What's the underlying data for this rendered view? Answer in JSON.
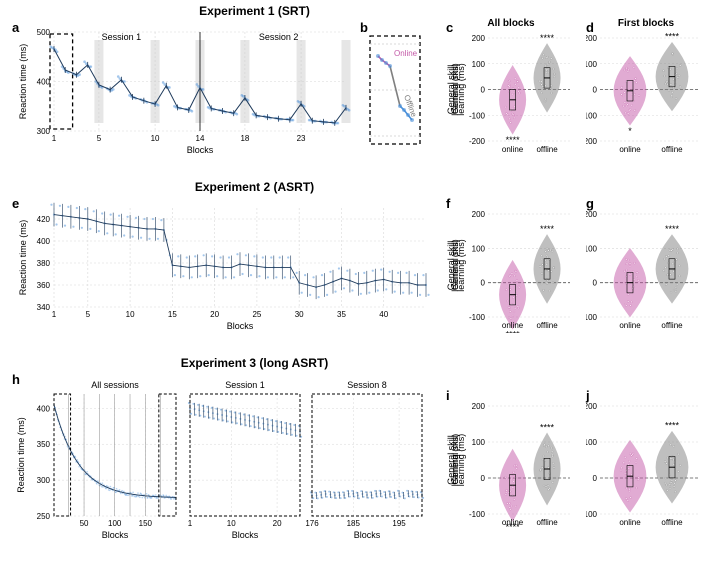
{
  "colors": {
    "line": "#4a90d9",
    "lineDark": "#1f3b5c",
    "grid": "#d8d8d8",
    "bg": "#ffffff",
    "shade": "#c8c8c8",
    "online": "#c45aa8",
    "offline": "#808080",
    "dash": "#333333"
  },
  "exp1": {
    "title": "Experiment 1 (SRT)",
    "panelA": {
      "label": "a",
      "ylabel": "Reaction time (ms)",
      "xlabel": "Blocks",
      "ylim": [
        300,
        500
      ],
      "yticks": [
        300,
        400,
        500
      ],
      "xlim": [
        1,
        27
      ],
      "xticks": [
        1,
        5,
        10,
        14,
        18,
        23
      ],
      "session1": "Session 1",
      "session2": "Session 2",
      "vline_at": 14,
      "shade_blocks": [
        5,
        10,
        14,
        18,
        23,
        27
      ],
      "dash_box": [
        1,
        2.3
      ],
      "data": [
        470,
        468,
        466,
        464,
        460,
        430,
        426,
        422,
        420,
        418,
        416,
        414,
        412,
        412,
        414,
        440,
        436,
        432,
        430,
        430,
        400,
        396,
        392,
        390,
        388,
        386,
        384,
        382,
        382,
        384,
        410,
        406,
        402,
        400,
        400,
        372,
        370,
        368,
        368,
        366,
        364,
        362,
        362,
        360,
        358,
        356,
        356,
        354,
        354,
        352,
        398,
        394,
        390,
        388,
        388,
        350,
        348,
        348,
        346,
        346,
        344,
        344,
        342,
        342,
        340,
        394,
        390,
        386,
        384,
        384,
        348,
        346,
        346,
        344,
        344,
        342,
        342,
        340,
        340,
        338,
        338,
        336,
        336,
        336,
        334,
        372,
        370,
        366,
        364,
        362,
        334,
        332,
        332,
        330,
        330,
        330,
        328,
        328,
        328,
        326,
        326,
        326,
        324,
        324,
        324,
        324,
        324,
        322,
        322,
        322,
        360,
        358,
        354,
        352,
        350,
        322,
        322,
        320,
        320,
        320,
        320,
        318,
        318,
        318,
        318,
        318,
        316,
        316,
        316,
        316,
        352,
        350,
        346,
        344,
        342
      ],
      "pts_per_block": 5
    },
    "panelB": {
      "label": "b",
      "online": "Online",
      "offline": "Offline"
    },
    "panelC": {
      "label": "c",
      "title": "All blocks",
      "ylabel": "General skill\nlearning (ms)",
      "ylim": [
        -200,
        200
      ],
      "yticks": [
        -200,
        -100,
        0,
        100,
        200
      ],
      "xcats": [
        "online",
        "offline"
      ],
      "online_center": -40,
      "offline_center": 45,
      "stars_online": "****",
      "stars_offline": "****"
    },
    "panelD": {
      "label": "d",
      "title": "First blocks",
      "online_center": -5,
      "offline_center": 50,
      "stars_online": "*",
      "stars_offline": "****"
    }
  },
  "exp2": {
    "title": "Experiment 2 (ASRT)",
    "panelE": {
      "label": "e",
      "ylabel": "Reaction time (ms)",
      "xlabel": "Blocks",
      "ylim": [
        340,
        430
      ],
      "yticks": [
        340,
        360,
        380,
        400,
        420
      ],
      "xlim": [
        1,
        45
      ],
      "xticks": [
        1,
        5,
        10,
        15,
        20,
        25,
        30,
        35,
        40
      ],
      "baseline": [
        424,
        423,
        422,
        421,
        420,
        418,
        416,
        415,
        414,
        413,
        412,
        411,
        411,
        410,
        378,
        377,
        376,
        377,
        378,
        377,
        376,
        376,
        379,
        378,
        377,
        376,
        376,
        376,
        376,
        362,
        360,
        358,
        360,
        363,
        366,
        364,
        361,
        362,
        364,
        365,
        363,
        362,
        362,
        360,
        360
      ],
      "amp": 18,
      "pts_per_block": 3
    },
    "panelF": {
      "label": "f",
      "ylabel": "General skill\nlearning (ms)",
      "ylim": [
        -100,
        200
      ],
      "yticks": [
        -100,
        0,
        100,
        200
      ],
      "xcats": [
        "online",
        "offline"
      ],
      "online_center": -35,
      "offline_center": 40,
      "stars_online": "****",
      "stars_offline": "****"
    },
    "panelG": {
      "label": "g",
      "online_center": 0,
      "offline_center": 40,
      "stars_online": "",
      "stars_offline": "****"
    }
  },
  "exp3": {
    "title": "Experiment 3 (long ASRT)",
    "panelH": {
      "label": "h",
      "ylabel": "Reaction time (ms)",
      "xlabel": "Blocks",
      "sub1": "All sessions",
      "sub2": "Session 1",
      "sub3": "Session 8",
      "ylim": [
        250,
        420
      ],
      "yticks": [
        250,
        300,
        350,
        400
      ],
      "all": {
        "xlim": [
          1,
          200
        ],
        "xticks": [
          50,
          100,
          150
        ],
        "start": 405,
        "end": 275,
        "decay": 0.025,
        "vlines": [
          25,
          50,
          75,
          100,
          125,
          150,
          175
        ],
        "dash1": [
          1,
          28
        ],
        "dash2": [
          172,
          200
        ]
      },
      "s1": {
        "xlim": [
          1,
          25
        ],
        "xticks": [
          1,
          10,
          20
        ],
        "baseline_start": 400,
        "baseline_end": 368,
        "amp": 15,
        "pts_per_block": 3
      },
      "s8": {
        "xlim": [
          176,
          200
        ],
        "xticks": [
          176,
          185,
          195
        ],
        "baseline": 280,
        "amp": 8,
        "pts_per_block": 3
      }
    },
    "panelI": {
      "label": "i",
      "ylabel": "General skill\nlearning (ms)",
      "ylim": [
        -100,
        200
      ],
      "yticks": [
        -100,
        0,
        100,
        200
      ],
      "xcats": [
        "online",
        "offline"
      ],
      "online_center": -20,
      "offline_center": 25,
      "stars_online": "****",
      "stars_offline": "****"
    },
    "panelJ": {
      "label": "j",
      "online_center": 5,
      "offline_center": 30,
      "stars_online": "",
      "stars_offline": "****"
    }
  }
}
